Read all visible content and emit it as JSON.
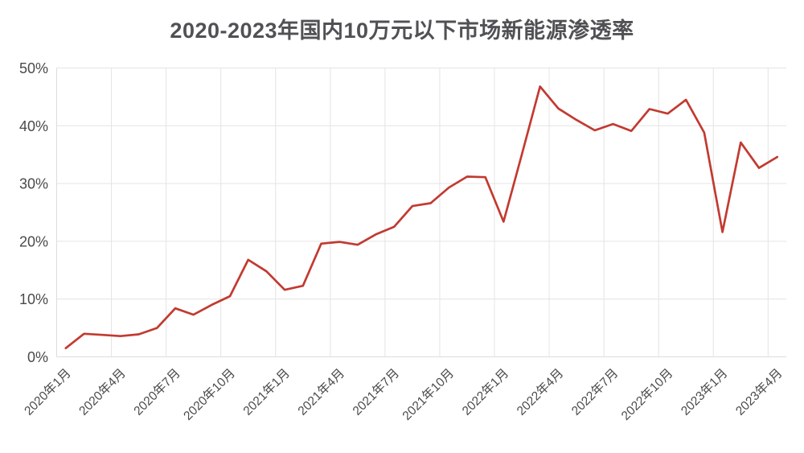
{
  "header": {
    "title": "2020-2023年国内10万元以下市场新能源渗透率",
    "title_color": "#515155"
  },
  "chart_data": {
    "type": "line",
    "title": "2020-2023年国内10万元以下市场新能源渗透率",
    "unit": "%",
    "x_categories": [
      "2020年1月",
      "2020年2月",
      "2020年3月",
      "2020年4月",
      "2020年5月",
      "2020年6月",
      "2020年7月",
      "2020年8月",
      "2020年9月",
      "2020年10月",
      "2020年11月",
      "2020年12月",
      "2021年1月",
      "2021年2月",
      "2021年3月",
      "2021年4月",
      "2021年5月",
      "2021年6月",
      "2021年7月",
      "2021年8月",
      "2021年9月",
      "2021年10月",
      "2021年11月",
      "2021年12月",
      "2022年1月",
      "2022年2月",
      "2022年3月",
      "2022年4月",
      "2022年5月",
      "2022年6月",
      "2022年7月",
      "2022年8月",
      "2022年9月",
      "2022年10月",
      "2022年11月",
      "2022年12月",
      "2023年1月",
      "2023年2月",
      "2023年3月",
      "2023年4月"
    ],
    "values": [
      1.5,
      4.0,
      3.8,
      3.6,
      3.9,
      5.0,
      8.4,
      7.3,
      9.0,
      10.5,
      16.8,
      14.8,
      11.6,
      12.3,
      19.6,
      19.9,
      19.4,
      21.2,
      22.5,
      26.1,
      26.6,
      29.3,
      31.2,
      31.1,
      23.4,
      35.0,
      46.8,
      43.0,
      41.0,
      39.2,
      40.3,
      39.1,
      42.9,
      42.1,
      44.5,
      38.8,
      21.6,
      37.1,
      32.7,
      34.6
    ],
    "x_tick_labels_shown": [
      "2020年1月",
      "2020年4月",
      "2020年7月",
      "2020年10月",
      "2021年1月",
      "2021年4月",
      "2021年7月",
      "2021年10月",
      "2022年1月",
      "2022年4月",
      "2022年7月",
      "2022年10月",
      "2023年1月",
      "2023年4月"
    ],
    "x_tick_every_n_months": 3,
    "y_tick_labels": [
      "0%",
      "10%",
      "20%",
      "30%",
      "40%",
      "50%"
    ],
    "ylim": [
      0,
      50
    ],
    "grid": true,
    "legend_position": "none",
    "line_color": "#c23a31",
    "grid_color": "#e4e4e4",
    "axis_label_color": "#4a4a4a"
  }
}
